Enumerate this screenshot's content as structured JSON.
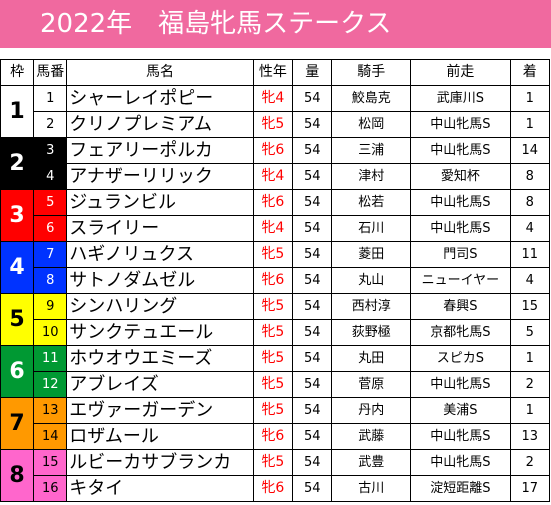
{
  "title": "2022年　福島牝馬ステークス",
  "headers": {
    "waku": "枠",
    "umaban": "馬番",
    "name": "馬名",
    "sexage": "性年",
    "weight": "量",
    "jockey": "騎手",
    "prev": "前走",
    "pop": "着"
  },
  "colors": {
    "title_bg": "#f0699f",
    "sex_text": "#ff0000"
  },
  "rows": [
    {
      "umaban": "1",
      "name": "シャーレイポピー",
      "sexage": "牝4",
      "weight": "54",
      "jockey": "鮫島克",
      "prev": "武庫川S",
      "pop": "1"
    },
    {
      "umaban": "2",
      "name": "クリノプレミアム",
      "sexage": "牝5",
      "weight": "54",
      "jockey": "松岡",
      "prev": "中山牝馬S",
      "pop": "1"
    },
    {
      "umaban": "3",
      "name": "フェアリーポルカ",
      "sexage": "牝6",
      "weight": "54",
      "jockey": "三浦",
      "prev": "中山牝馬S",
      "pop": "14"
    },
    {
      "umaban": "4",
      "name": "アナザーリリック",
      "sexage": "牝4",
      "weight": "54",
      "jockey": "津村",
      "prev": "愛知杯",
      "pop": "8"
    },
    {
      "umaban": "5",
      "name": "ジュランビル",
      "sexage": "牝6",
      "weight": "54",
      "jockey": "松若",
      "prev": "中山牝馬S",
      "pop": "8"
    },
    {
      "umaban": "6",
      "name": "スライリー",
      "sexage": "牝4",
      "weight": "54",
      "jockey": "石川",
      "prev": "中山牝馬S",
      "pop": "4"
    },
    {
      "umaban": "7",
      "name": "ハギノリュクス",
      "sexage": "牝5",
      "weight": "54",
      "jockey": "菱田",
      "prev": "門司S",
      "pop": "11"
    },
    {
      "umaban": "8",
      "name": "サトノダムゼル",
      "sexage": "牝6",
      "weight": "54",
      "jockey": "丸山",
      "prev": "ニューイヤー",
      "pop": "4"
    },
    {
      "umaban": "9",
      "name": "シンハリング",
      "sexage": "牝5",
      "weight": "54",
      "jockey": "西村淳",
      "prev": "春興S",
      "pop": "15"
    },
    {
      "umaban": "10",
      "name": "サンクテュエール",
      "sexage": "牝5",
      "weight": "54",
      "jockey": "荻野極",
      "prev": "京都牝馬S",
      "pop": "5"
    },
    {
      "umaban": "11",
      "name": "ホウオウエミーズ",
      "sexage": "牝5",
      "weight": "54",
      "jockey": "丸田",
      "prev": "スピカS",
      "pop": "1"
    },
    {
      "umaban": "12",
      "name": "アブレイズ",
      "sexage": "牝5",
      "weight": "54",
      "jockey": "菅原",
      "prev": "中山牝馬S",
      "pop": "2"
    },
    {
      "umaban": "13",
      "name": "エヴァーガーデン",
      "sexage": "牝5",
      "weight": "54",
      "jockey": "丹内",
      "prev": "美浦S",
      "pop": "1"
    },
    {
      "umaban": "14",
      "name": "ロザムール",
      "sexage": "牝6",
      "weight": "54",
      "jockey": "武藤",
      "prev": "中山牝馬S",
      "pop": "13"
    },
    {
      "umaban": "15",
      "name": "ルビーカサブランカ",
      "sexage": "牝5",
      "weight": "54",
      "jockey": "武豊",
      "prev": "中山牝馬S",
      "pop": "2"
    },
    {
      "umaban": "16",
      "name": "キタイ",
      "sexage": "牝6",
      "weight": "54",
      "jockey": "古川",
      "prev": "淀短距離S",
      "pop": "17"
    }
  ],
  "wakus": [
    {
      "label": "1",
      "bg": "#ffffff",
      "fg": "#000000",
      "span": 2
    },
    {
      "label": "2",
      "bg": "#000000",
      "fg": "#ffffff",
      "span": 2
    },
    {
      "label": "3",
      "bg": "#ff0000",
      "fg": "#ffffff",
      "span": 2
    },
    {
      "label": "4",
      "bg": "#0033ff",
      "fg": "#ffffff",
      "span": 2
    },
    {
      "label": "5",
      "bg": "#ffff00",
      "fg": "#000000",
      "span": 2
    },
    {
      "label": "6",
      "bg": "#009933",
      "fg": "#ffffff",
      "span": 2
    },
    {
      "label": "7",
      "bg": "#ff9900",
      "fg": "#000000",
      "span": 2
    },
    {
      "label": "8",
      "bg": "#ff66cc",
      "fg": "#000000",
      "span": 2
    }
  ]
}
